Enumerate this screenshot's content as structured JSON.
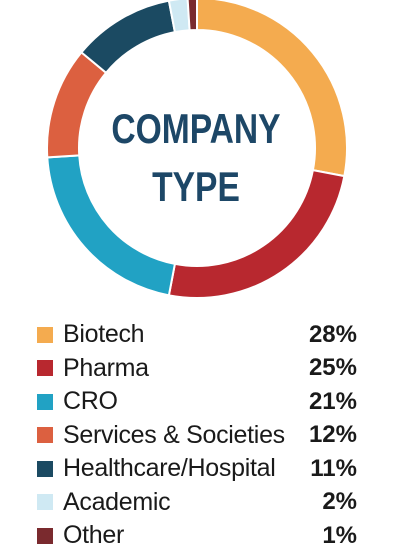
{
  "chart_data": {
    "type": "pie",
    "style": "donut",
    "title": "COMPANY TYPE",
    "title_lines": [
      "COMPANY",
      "TYPE"
    ],
    "categories": [
      "Biotech",
      "Pharma",
      "CRO",
      "Services & Societies",
      "Healthcare/Hospital",
      "Academic",
      "Other"
    ],
    "values": [
      28,
      25,
      21,
      12,
      11,
      2,
      1
    ],
    "value_labels": [
      "28%",
      "25%",
      "21%",
      "12%",
      "11%",
      "2%",
      "1%"
    ],
    "colors": [
      "#f4ab4f",
      "#b8282f",
      "#21a2c4",
      "#dc6040",
      "#1b4a62",
      "#cfe9f3",
      "#7a2a2e"
    ],
    "legend_position": "bottom"
  }
}
